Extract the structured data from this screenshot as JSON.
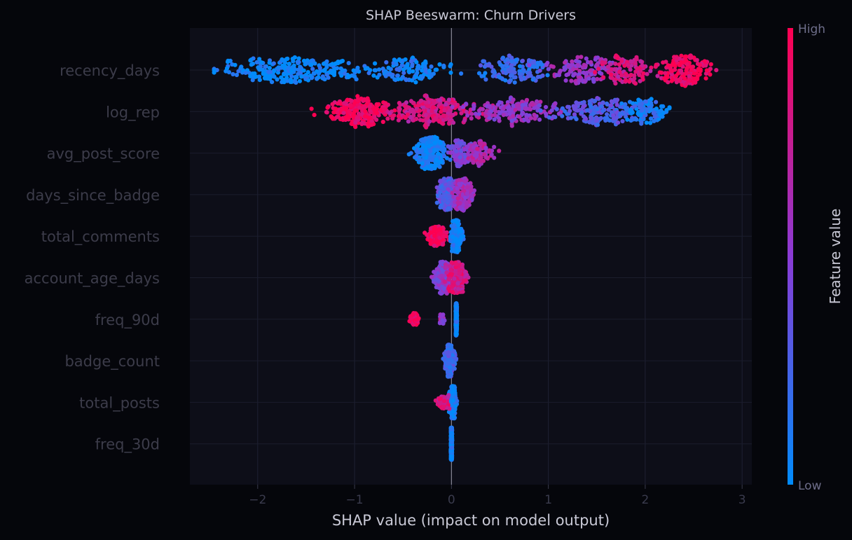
{
  "chart_data": {
    "type": "scatter",
    "subtype": "shap-beeswarm",
    "title": "SHAP Beeswarm: Churn Drivers",
    "xlabel": "SHAP value (impact on model output)",
    "ylabel": "",
    "xlim": [
      -2.7,
      3.1
    ],
    "xticks": [
      -2,
      -1,
      0,
      1,
      2,
      3
    ],
    "xtick_labels": [
      "−2",
      "−1",
      "0",
      "1",
      "2",
      "3"
    ],
    "grid": true,
    "colorbar": {
      "label": "Feature value",
      "high_label": "High",
      "low_label": "Low",
      "low_color": "#008bfb",
      "high_color": "#ff0051"
    },
    "features": [
      {
        "name": "recency_days",
        "value_range": [
          -2.45,
          2.8
        ],
        "clusters": [
          {
            "x": -1.6,
            "spread": 0.75,
            "weight": 0.28,
            "color": 0.03
          },
          {
            "x": -0.4,
            "spread": 0.35,
            "weight": 0.12,
            "color": 0.08
          },
          {
            "x": 0.65,
            "spread": 0.3,
            "weight": 0.15,
            "color": 0.2
          },
          {
            "x": 1.35,
            "spread": 0.35,
            "weight": 0.15,
            "color": 0.55
          },
          {
            "x": 1.8,
            "spread": 0.25,
            "weight": 0.12,
            "color": 0.8
          },
          {
            "x": 2.4,
            "spread": 0.25,
            "weight": 0.18,
            "color": 0.95
          }
        ]
      },
      {
        "name": "log_rep",
        "value_range": [
          -1.45,
          2.25
        ],
        "clusters": [
          {
            "x": -0.95,
            "spread": 0.3,
            "weight": 0.25,
            "color": 0.96
          },
          {
            "x": -0.2,
            "spread": 0.35,
            "weight": 0.25,
            "color": 0.8
          },
          {
            "x": 0.7,
            "spread": 0.4,
            "weight": 0.2,
            "color": 0.55
          },
          {
            "x": 1.5,
            "spread": 0.35,
            "weight": 0.18,
            "color": 0.3
          },
          {
            "x": 2.0,
            "spread": 0.2,
            "weight": 0.12,
            "color": 0.1
          }
        ]
      },
      {
        "name": "avg_post_score",
        "value_range": [
          -0.55,
          0.5
        ],
        "clusters": [
          {
            "x": -0.22,
            "spread": 0.15,
            "weight": 0.6,
            "color": 0.05
          },
          {
            "x": 0.1,
            "spread": 0.1,
            "weight": 0.2,
            "color": 0.45
          },
          {
            "x": 0.28,
            "spread": 0.1,
            "weight": 0.2,
            "color": 0.65
          }
        ]
      },
      {
        "name": "days_since_badge",
        "value_range": [
          -0.25,
          0.35
        ],
        "clusters": [
          {
            "x": -0.05,
            "spread": 0.08,
            "weight": 0.5,
            "color": 0.3
          },
          {
            "x": 0.12,
            "spread": 0.09,
            "weight": 0.5,
            "color": 0.6
          }
        ]
      },
      {
        "name": "total_comments",
        "value_range": [
          -0.35,
          0.25
        ],
        "clusters": [
          {
            "x": -0.15,
            "spread": 0.08,
            "weight": 0.35,
            "color": 0.95
          },
          {
            "x": 0.05,
            "spread": 0.05,
            "weight": 0.65,
            "color": 0.05
          }
        ]
      },
      {
        "name": "account_age_days",
        "value_range": [
          -0.3,
          0.25
        ],
        "clusters": [
          {
            "x": -0.08,
            "spread": 0.08,
            "weight": 0.5,
            "color": 0.5
          },
          {
            "x": 0.05,
            "spread": 0.08,
            "weight": 0.5,
            "color": 0.8
          }
        ]
      },
      {
        "name": "freq_90d",
        "value_range": [
          -0.47,
          0.06
        ],
        "clusters": [
          {
            "x": -0.38,
            "spread": 0.04,
            "weight": 0.15,
            "color": 0.97
          },
          {
            "x": -0.1,
            "spread": 0.03,
            "weight": 0.05,
            "color": 0.55
          },
          {
            "x": 0.05,
            "spread": 0.005,
            "weight": 0.8,
            "color": 0.05
          }
        ]
      },
      {
        "name": "badge_count",
        "value_range": [
          -0.15,
          0.1
        ],
        "clusters": [
          {
            "x": -0.02,
            "spread": 0.04,
            "weight": 1.0,
            "color": 0.25
          }
        ]
      },
      {
        "name": "total_posts",
        "value_range": [
          -0.18,
          0.1
        ],
        "clusters": [
          {
            "x": 0.01,
            "spread": 0.03,
            "weight": 0.85,
            "color": 0.08
          },
          {
            "x": -0.08,
            "spread": 0.05,
            "weight": 0.15,
            "color": 0.8
          }
        ]
      },
      {
        "name": "freq_30d",
        "value_range": [
          -0.08,
          0.02
        ],
        "clusters": [
          {
            "x": 0.0,
            "spread": 0.005,
            "weight": 1.0,
            "color": 0.05
          }
        ]
      }
    ]
  }
}
